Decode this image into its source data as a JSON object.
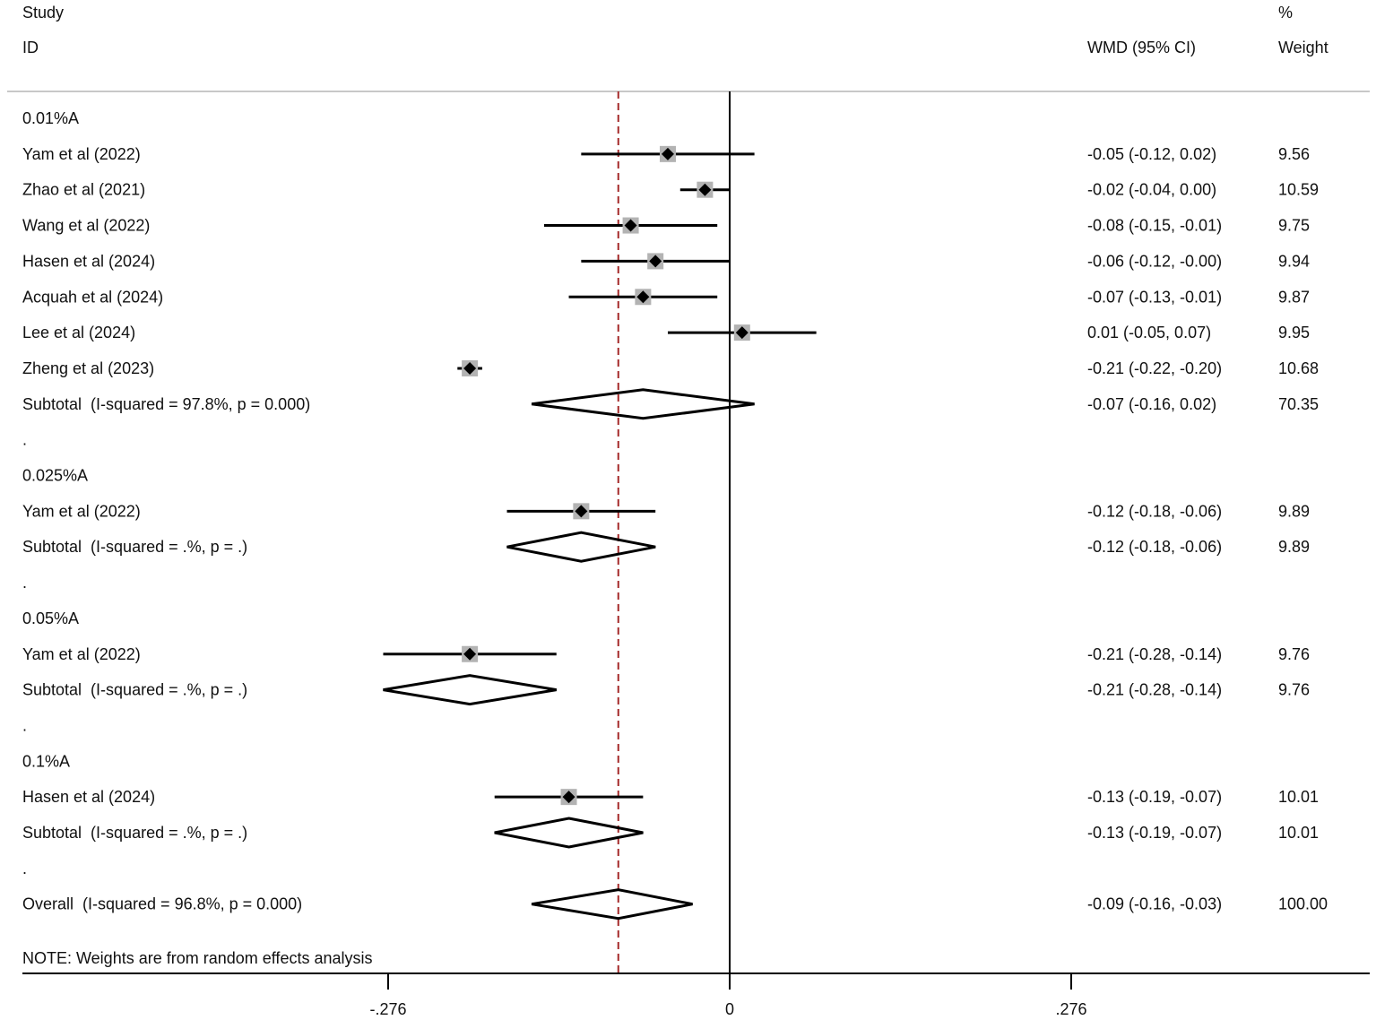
{
  "chart_data": {
    "type": "forest",
    "header": {
      "study": "Study",
      "id": "ID",
      "effect": "WMD (95% CI)",
      "weight_pct": "%",
      "weight": "Weight"
    },
    "axis": {
      "ticks": [
        -0.276,
        0,
        0.276
      ],
      "tick_labels": [
        "-.276",
        "0",
        ".276"
      ],
      "null_line": 0,
      "overall_line": -0.09
    },
    "note": "NOTE: Weights are from random effects analysis",
    "rows": [
      {
        "kind": "group",
        "label": "0.01%A"
      },
      {
        "kind": "study",
        "label": "Yam et al (2022)",
        "est": -0.05,
        "lo": -0.12,
        "hi": 0.02,
        "ci_text": "-0.05 (-0.12, 0.02)",
        "weight": "9.56"
      },
      {
        "kind": "study",
        "label": "Zhao et al (2021)",
        "est": -0.02,
        "lo": -0.04,
        "hi": 0.0,
        "ci_text": "-0.02 (-0.04, 0.00)",
        "weight": "10.59"
      },
      {
        "kind": "study",
        "label": "Wang et al (2022)",
        "est": -0.08,
        "lo": -0.15,
        "hi": -0.01,
        "ci_text": "-0.08 (-0.15, -0.01)",
        "weight": "9.75"
      },
      {
        "kind": "study",
        "label": "Hasen et al (2024)",
        "est": -0.06,
        "lo": -0.12,
        "hi": -0.0,
        "ci_text": "-0.06 (-0.12, -0.00)",
        "weight": "9.94"
      },
      {
        "kind": "study",
        "label": "Acquah et al (2024)",
        "est": -0.07,
        "lo": -0.13,
        "hi": -0.01,
        "ci_text": "-0.07 (-0.13, -0.01)",
        "weight": "9.87"
      },
      {
        "kind": "study",
        "label": "Lee et al (2024)",
        "est": 0.01,
        "lo": -0.05,
        "hi": 0.07,
        "ci_text": "0.01 (-0.05, 0.07)",
        "weight": "9.95"
      },
      {
        "kind": "study",
        "label": "Zheng et al (2023)",
        "est": -0.21,
        "lo": -0.22,
        "hi": -0.2,
        "ci_text": "-0.21 (-0.22, -0.20)",
        "weight": "10.68"
      },
      {
        "kind": "subtotal",
        "label": "Subtotal  (I-squared = 97.8%, p = 0.000)",
        "est": -0.07,
        "lo": -0.16,
        "hi": 0.02,
        "ci_text": "-0.07 (-0.16, 0.02)",
        "weight": "70.35"
      },
      {
        "kind": "spacer",
        "label": "."
      },
      {
        "kind": "group",
        "label": "0.025%A"
      },
      {
        "kind": "study",
        "label": "Yam et al (2022)",
        "est": -0.12,
        "lo": -0.18,
        "hi": -0.06,
        "ci_text": "-0.12 (-0.18, -0.06)",
        "weight": "9.89"
      },
      {
        "kind": "subtotal",
        "label": "Subtotal  (I-squared = .%, p = .)",
        "est": -0.12,
        "lo": -0.18,
        "hi": -0.06,
        "ci_text": "-0.12 (-0.18, -0.06)",
        "weight": "9.89"
      },
      {
        "kind": "spacer",
        "label": "."
      },
      {
        "kind": "group",
        "label": "0.05%A"
      },
      {
        "kind": "study",
        "label": "Yam et al (2022)",
        "est": -0.21,
        "lo": -0.28,
        "hi": -0.14,
        "ci_text": "-0.21 (-0.28, -0.14)",
        "weight": "9.76"
      },
      {
        "kind": "subtotal",
        "label": "Subtotal  (I-squared = .%, p = .)",
        "est": -0.21,
        "lo": -0.28,
        "hi": -0.14,
        "ci_text": "-0.21 (-0.28, -0.14)",
        "weight": "9.76"
      },
      {
        "kind": "spacer",
        "label": "."
      },
      {
        "kind": "group",
        "label": "0.1%A"
      },
      {
        "kind": "study",
        "label": "Hasen et al (2024)",
        "est": -0.13,
        "lo": -0.19,
        "hi": -0.07,
        "ci_text": "-0.13 (-0.19, -0.07)",
        "weight": "10.01"
      },
      {
        "kind": "subtotal",
        "label": "Subtotal  (I-squared = .%, p = .)",
        "est": -0.13,
        "lo": -0.19,
        "hi": -0.07,
        "ci_text": "-0.13 (-0.19, -0.07)",
        "weight": "10.01"
      },
      {
        "kind": "spacer",
        "label": "."
      },
      {
        "kind": "overall",
        "label": "Overall  (I-squared = 96.8%, p = 0.000)",
        "est": -0.09,
        "lo": -0.16,
        "hi": -0.03,
        "ci_text": "-0.09 (-0.16, -0.03)",
        "weight": "100.00"
      }
    ],
    "colors": {
      "line": "#000000",
      "weight_box": "#b3b3b3",
      "overall_line": "#a52a2a",
      "header_rule": "#c8c8c8"
    }
  }
}
